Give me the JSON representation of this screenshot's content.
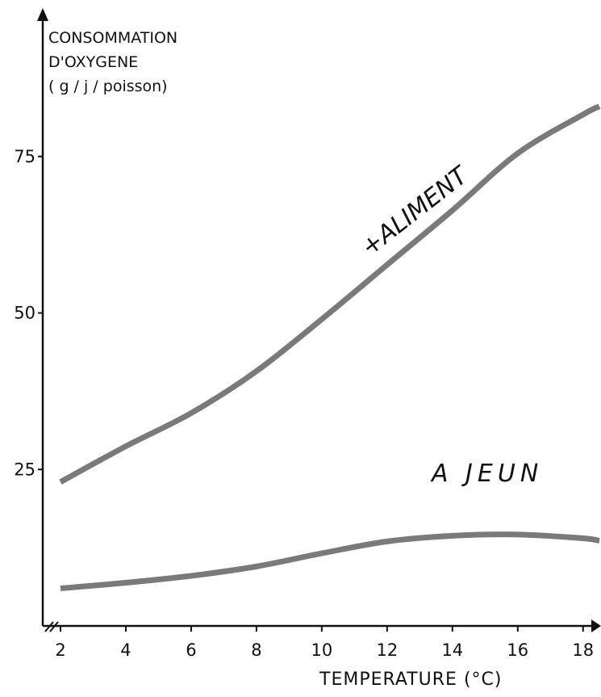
{
  "chart_data": {
    "type": "line",
    "ylabel_lines": [
      "CONSOMMATION",
      "D'OXYGENE",
      "( g / j / poisson)"
    ],
    "xlabel": "TEMPERATURE (°C)",
    "x_ticks": [
      2,
      4,
      6,
      8,
      10,
      12,
      14,
      16,
      18
    ],
    "y_ticks": [
      25,
      50,
      75
    ],
    "xlim": [
      2,
      18.5
    ],
    "ylim": [
      0,
      100
    ],
    "series": [
      {
        "name": "+ALIMENT",
        "x": [
          2,
          4,
          6,
          8,
          10,
          12,
          14,
          16,
          18,
          18.5
        ],
        "y": [
          23,
          28.7,
          34,
          40.7,
          49,
          57.7,
          66.4,
          75.5,
          81.7,
          83
        ]
      },
      {
        "name": "A JEUN",
        "x": [
          2,
          4,
          6,
          8,
          10,
          12,
          14,
          16,
          18,
          18.5
        ],
        "y": [
          6,
          6.9,
          8,
          9.5,
          11.6,
          13.5,
          14.4,
          14.6,
          14,
          13.6
        ]
      }
    ],
    "colors": {
      "line": "#7a7a7a",
      "axis": "#111111"
    }
  }
}
